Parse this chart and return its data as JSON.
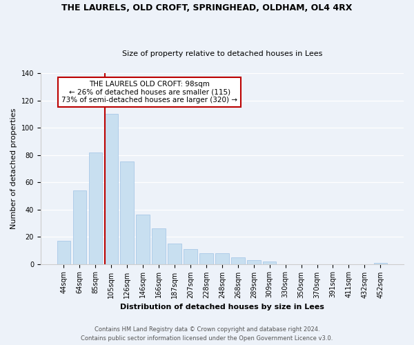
{
  "title": "THE LAURELS, OLD CROFT, SPRINGHEAD, OLDHAM, OL4 4RX",
  "subtitle": "Size of property relative to detached houses in Lees",
  "xlabel": "Distribution of detached houses by size in Lees",
  "ylabel": "Number of detached properties",
  "bar_labels": [
    "44sqm",
    "64sqm",
    "85sqm",
    "105sqm",
    "126sqm",
    "146sqm",
    "166sqm",
    "187sqm",
    "207sqm",
    "228sqm",
    "248sqm",
    "268sqm",
    "289sqm",
    "309sqm",
    "330sqm",
    "350sqm",
    "370sqm",
    "391sqm",
    "411sqm",
    "432sqm",
    "452sqm"
  ],
  "bar_values": [
    17,
    54,
    82,
    110,
    75,
    36,
    26,
    15,
    11,
    8,
    8,
    5,
    3,
    2,
    0,
    0,
    0,
    0,
    0,
    0,
    1
  ],
  "bar_color": "#c8dff0",
  "bar_edge_color": "#a8c8e8",
  "vline_bar_index": 3,
  "vline_color": "#bb0000",
  "annotation_text": "THE LAURELS OLD CROFT: 98sqm\n← 26% of detached houses are smaller (115)\n73% of semi-detached houses are larger (320) →",
  "annotation_box_color": "#ffffff",
  "annotation_border_color": "#bb0000",
  "ylim": [
    0,
    140
  ],
  "yticks": [
    0,
    20,
    40,
    60,
    80,
    100,
    120,
    140
  ],
  "footer_line1": "Contains HM Land Registry data © Crown copyright and database right 2024.",
  "footer_line2": "Contains public sector information licensed under the Open Government Licence v3.0.",
  "bg_color": "#edf2f9",
  "plot_bg_color": "#edf2f9",
  "grid_color": "#ffffff",
  "title_fontsize": 9.0,
  "subtitle_fontsize": 8.0,
  "tick_fontsize": 7.0,
  "label_fontsize": 8.0,
  "annotation_fontsize": 7.5,
  "footer_fontsize": 6.0
}
